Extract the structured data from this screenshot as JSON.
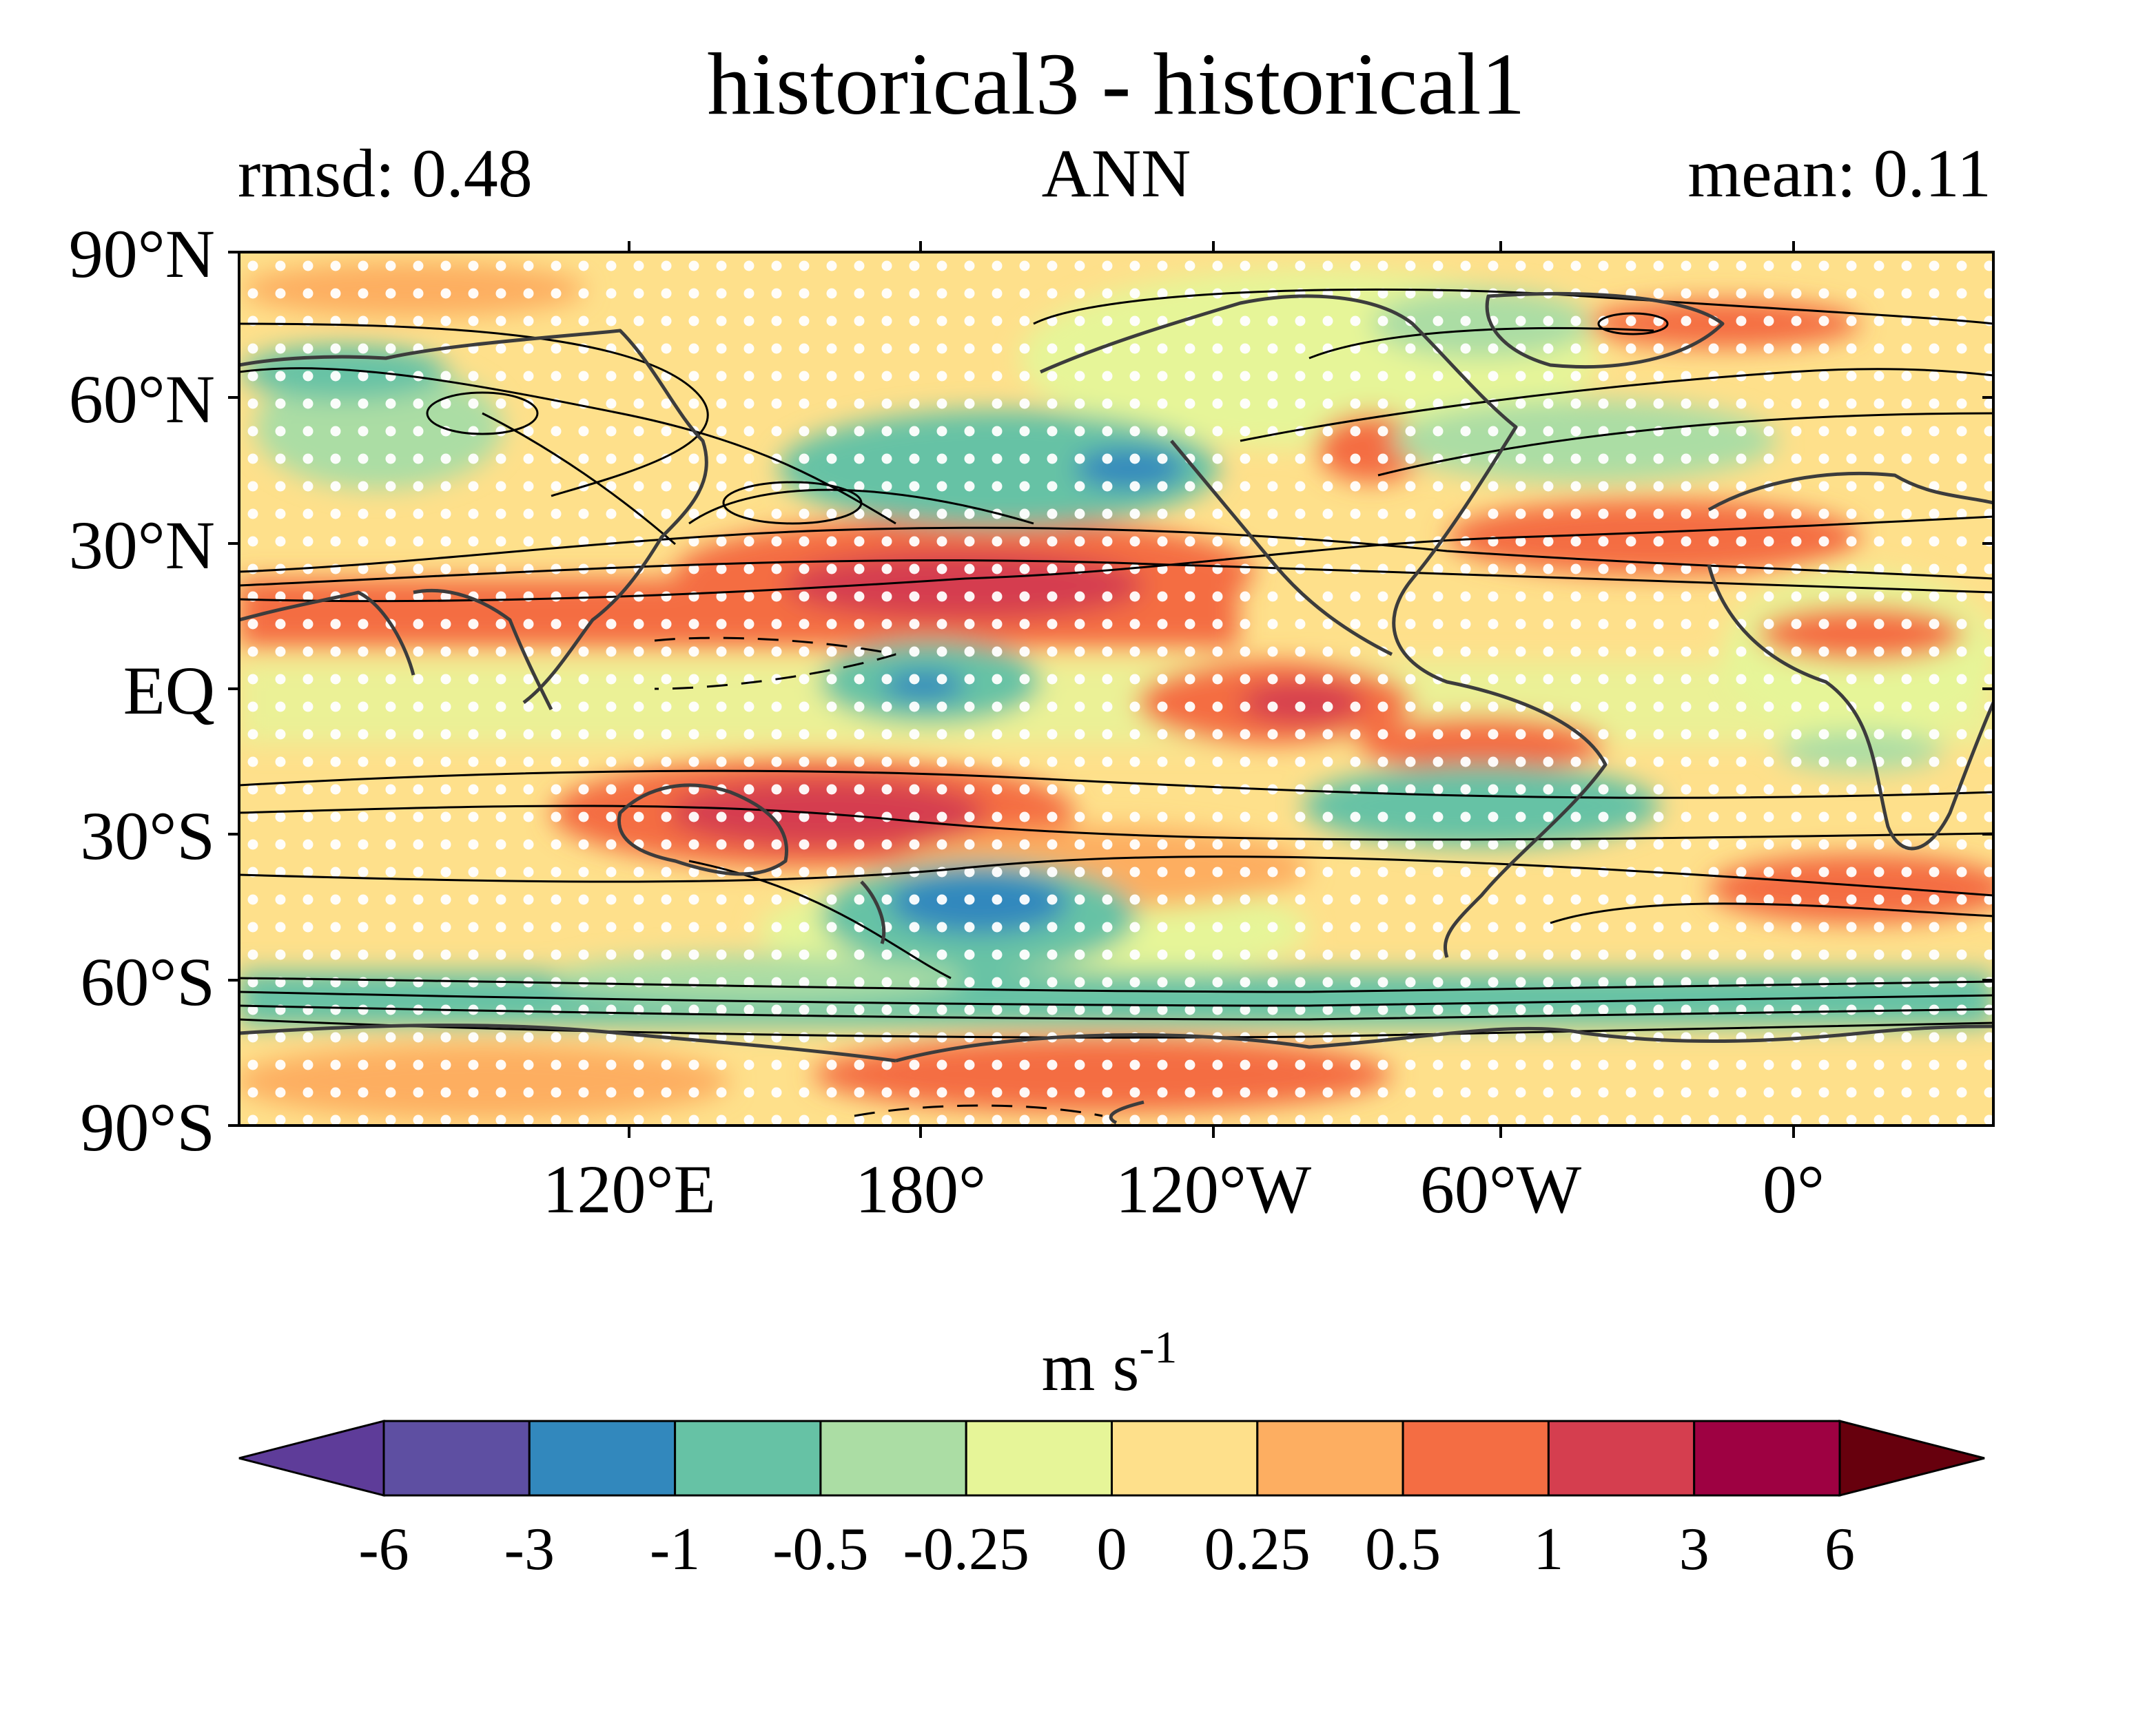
{
  "title": "historical3 - historical1",
  "left_label": "rmsd: 0.48",
  "center_label": "ANN",
  "right_label": "mean: 0.11",
  "axes": {
    "lat_ticks": [
      "90°N",
      "60°N",
      "30°N",
      "EQ",
      "30°S",
      "60°S",
      "90°S"
    ],
    "lon_ticks": [
      "120°E",
      "180°",
      "120°W",
      "60°W",
      "0°"
    ]
  },
  "colorbar": {
    "unit_main": "m s",
    "unit_exp": "-1",
    "levels": [
      "-6",
      "-3",
      "-1",
      "-0.5",
      "-0.25",
      "0",
      "0.25",
      "0.5",
      "1",
      "3",
      "6"
    ],
    "colors": [
      "#5e3c99",
      "#5e4fa2",
      "#3288bd",
      "#66c2a5",
      "#abdda4",
      "#e6f598",
      "#fee08b",
      "#fdae61",
      "#f46d43",
      "#d53e4f",
      "#9e0142",
      "#67000d"
    ]
  },
  "chart_data": {
    "type": "heatmap",
    "title": "historical3 - historical1",
    "subtitle_left": "rmsd: 0.48",
    "subtitle_center": "ANN",
    "subtitle_right": "mean: 0.11",
    "variable_unit": "m s-1",
    "lon_range": [
      60,
      420
    ],
    "lat_range": [
      -90,
      90
    ],
    "overlays": [
      "coastlines",
      "climatology contours (solid positive, dashed negative)",
      "white stippling where difference not significant"
    ],
    "anomaly_features": [
      {
        "region": "North Pacific subtropical jet (~25°N, 160°W)",
        "value_range": "1 to 3"
      },
      {
        "region": "North Pacific (~45°N, 150°W)",
        "value_range": "-3 to -1"
      },
      {
        "region": "Equatorial central Pacific (~0°, 170°W)",
        "value_range": "-3 to -1"
      },
      {
        "region": "Eastern tropical Pacific (~5°S, 100°W)",
        "value_range": "1 to 3"
      },
      {
        "region": "South Pacific / Australia (~25°S, 170°E)",
        "value_range": "1 to 3"
      },
      {
        "region": "South Pacific (~40°S, 160°W)",
        "value_range": "-3 to -1"
      },
      {
        "region": "South Atlantic (~30°S, 40°W)",
        "value_range": "-1 to -0.5"
      },
      {
        "region": "North Atlantic (~30°N, 40°W)",
        "value_range": "0.5 to 1"
      },
      {
        "region": "Southern Ocean (~60°S)",
        "value_range": "-1 to -0.5"
      },
      {
        "region": "Antarctic margin (~70°S)",
        "value_range": "0.5 to 1"
      }
    ]
  }
}
